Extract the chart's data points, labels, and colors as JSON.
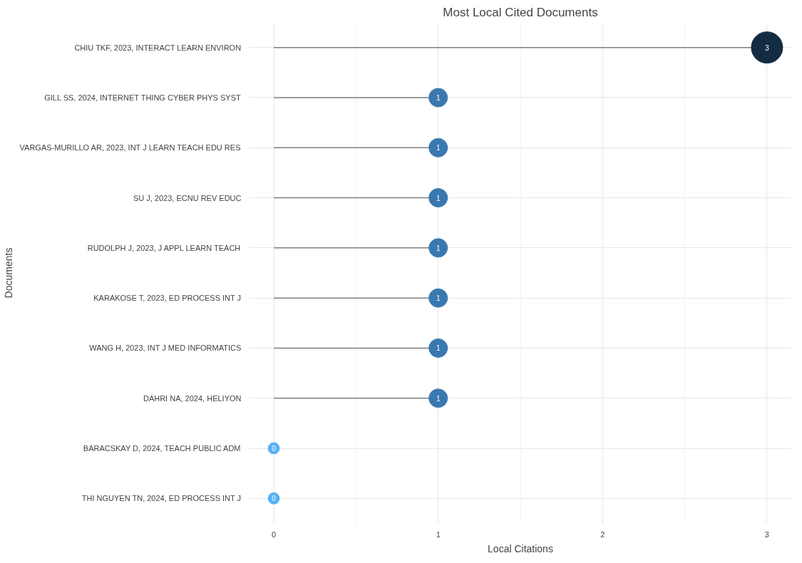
{
  "chart_data": {
    "type": "lollipop",
    "title": "Most Local Cited Documents",
    "xlabel": "Local Citations",
    "ylabel": "Documents",
    "orientation": "horizontal",
    "categories": [
      "CHIU TKF, 2023, INTERACT LEARN ENVIRON",
      "GILL SS, 2024, INTERNET THING CYBER PHYS SYST",
      "VARGAS-MURILLO AR, 2023, INT J LEARN TEACH EDU RES",
      "SU J, 2023, ECNU REV EDUC",
      "RUDOLPH J, 2023, J APPL LEARN TEACH",
      "KARAKOSE T, 2023, ED PROCESS INT J",
      "WANG H, 2023, INT J MED INFORMATICS",
      "DAHRI NA, 2024, HELIYON",
      "BARACSKAY D, 2024, TEACH PUBLIC ADM",
      "THI NGUYEN TN, 2024, ED PROCESS INT J"
    ],
    "values": [
      3,
      1,
      1,
      1,
      1,
      1,
      1,
      1,
      0,
      0
    ],
    "colors": [
      "#132b43",
      "#3a78b0",
      "#3a78b0",
      "#3a78b0",
      "#3a78b0",
      "#3a78b0",
      "#3a78b0",
      "#3a78b0",
      "#56b1f7",
      "#56b1f7"
    ],
    "sizes": [
      1,
      0.35,
      0.35,
      0.35,
      0.35,
      0.35,
      0.35,
      0.35,
      0.13,
      0.13
    ],
    "xlim": [
      -0.15,
      3.15
    ],
    "xticks": [
      0,
      1,
      2,
      3
    ],
    "grid": true,
    "data_labels": true
  }
}
